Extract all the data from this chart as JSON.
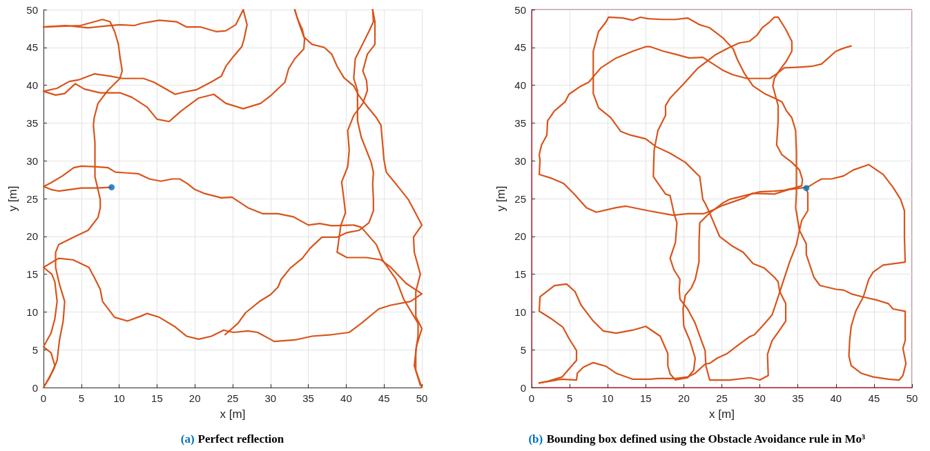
{
  "chart_data": [
    {
      "type": "line",
      "title": "(a) Perfect reflection",
      "xlabel": "x [m]",
      "ylabel": "y [m]",
      "xlim": [
        0,
        50
      ],
      "ylim": [
        0,
        50
      ],
      "xticks": [
        0,
        5,
        10,
        15,
        20,
        25,
        30,
        35,
        40,
        45,
        50
      ],
      "yticks": [
        0,
        5,
        10,
        15,
        20,
        25,
        30,
        35,
        40,
        45,
        50
      ],
      "grid": true,
      "series": [
        {
          "color": "#d95319",
          "marker": "none",
          "x": [
            9,
            7,
            5,
            3.5,
            2,
            1,
            0,
            1,
            2.5,
            4,
            5,
            7,
            8.5,
            9.5,
            11,
            12.5,
            14,
            15.5,
            17,
            18,
            19,
            20,
            21.2,
            23.5,
            24.9,
            27,
            29,
            31,
            33,
            35,
            36.5,
            38.1,
            41,
            42,
            44,
            44.8,
            46.6,
            47.6,
            49.5,
            49.5,
            49.2,
            49.2,
            50
          ],
          "values": [
            26.5,
            26.4,
            26.4,
            26.2,
            26,
            26.2,
            26.6,
            27.1,
            28,
            29.1,
            29.3,
            29.2,
            29.1,
            28.5,
            28.4,
            28.3,
            27.6,
            27.3,
            27.6,
            27.6,
            27,
            26.2,
            25.7,
            25.1,
            25.2,
            23.8,
            23,
            23,
            22.6,
            21.5,
            21.7,
            21.4,
            21.5,
            21.2,
            18.9,
            16.9,
            14.3,
            11.7,
            8.5,
            6.8,
            4.9,
            2.3,
            0
          ]
        },
        {
          "color": "#d95319",
          "marker": "none",
          "x": [
            0,
            4.9,
            7.8,
            8.8,
            9.4,
            9.9,
            10.1,
            10.4,
            10.1,
            8.5,
            7.2,
            6.7,
            6.6,
            6.8,
            6.8,
            7.2,
            7.5,
            7.5,
            7.2,
            5.9,
            4.2,
            2,
            1.6,
            1.6,
            2.1,
            2.8,
            2.6,
            2.1,
            1.8,
            1.3,
            0
          ],
          "values": [
            47.7,
            47.9,
            48.7,
            48.4,
            47.1,
            45.4,
            43.8,
            41.9,
            40.9,
            39.3,
            37.6,
            35.7,
            34.7,
            32.4,
            27.9,
            26.2,
            24.9,
            23.8,
            22.5,
            20.8,
            20,
            18.9,
            17.9,
            15.9,
            13.7,
            11.4,
            8.8,
            6.2,
            3.6,
            2.3,
            0
          ]
        },
        {
          "color": "#d95319",
          "marker": "none",
          "x": [
            0,
            2.9,
            5.9,
            7.8,
            10.1,
            12,
            13,
            15.3,
            17.6,
            18.9,
            20.8,
            22.8,
            24.1,
            25.4,
            26.4,
            26.9,
            26.5,
            26.2,
            25.1,
            24.1,
            23.5,
            22.1,
            20.2,
            18.6,
            17.4,
            16,
            14.6,
            13.2,
            10.4,
            8.8,
            6.7,
            4.6,
            3.4,
            1.8,
            0,
            1.6,
            2.8,
            4.2,
            5.4,
            7.5,
            10.1,
            11.7,
            13.7,
            15,
            16.6,
            18.2,
            20.5,
            22.5,
            24.1,
            26.4,
            28.7,
            30,
            31.9,
            32.4,
            33.2,
            34.4,
            34.5,
            34.2,
            33.6,
            33.2
          ],
          "values": [
            47.7,
            47.9,
            47.6,
            47.8,
            48,
            47.9,
            48.2,
            48.6,
            48.4,
            47.7,
            47.7,
            47.1,
            47.2,
            48,
            50,
            48,
            46.1,
            45.1,
            43.8,
            42.5,
            41.2,
            40.4,
            39.4,
            39.1,
            38.8,
            39.6,
            40.4,
            40.9,
            40.9,
            41.2,
            41.5,
            40.7,
            40.5,
            39.6,
            39.2,
            38.7,
            38.9,
            40.2,
            39.5,
            39,
            39,
            38.4,
            37.1,
            35.5,
            35.2,
            36.6,
            38.3,
            38.8,
            37.6,
            36.9,
            37.6,
            38.6,
            40.4,
            42.2,
            43.5,
            44.8,
            46.1,
            47.4,
            48.7,
            50
          ]
        },
        {
          "color": "#d95319",
          "marker": "none",
          "x": [
            33.2,
            33.7,
            34.4,
            35.5,
            37.1,
            38.1,
            38.8,
            39.7,
            41,
            41.7,
            42.7,
            44,
            44.6,
            45,
            45.3,
            46.6,
            48.2,
            50,
            48.9,
            49,
            49.8,
            49.2,
            49.2,
            50,
            49.3,
            49,
            49.8
          ],
          "values": [
            50,
            48.4,
            46.4,
            45.4,
            45,
            44.1,
            42.5,
            41,
            39.9,
            38.6,
            37.3,
            35.7,
            34.7,
            30.1,
            28.5,
            26.9,
            24.9,
            21.5,
            19.9,
            17.9,
            15,
            12.7,
            9.4,
            7.8,
            5.5,
            2.9,
            0.3
          ]
        },
        {
          "color": "#d95319",
          "marker": "none",
          "x": [
            43.5,
            43.6,
            43,
            42,
            41.2,
            41,
            41.5,
            41.5,
            42,
            43.3,
            43.6,
            43.5,
            43.6,
            43.6,
            43.6,
            43,
            41.7,
            40.1,
            38.8,
            36.8,
            35.2,
            34.2,
            32.6,
            31.4,
            31,
            30,
            28.7,
            26.7,
            25.7,
            24
          ],
          "values": [
            50,
            48.4,
            47.1,
            45.1,
            43.5,
            40.9,
            39.3,
            35.3,
            33.1,
            29.8,
            28.5,
            26.9,
            24.9,
            25,
            23.4,
            21.8,
            20.8,
            20.5,
            19.9,
            19.9,
            18.4,
            17.1,
            15.8,
            14.3,
            13.3,
            12.3,
            11.5,
            9.9,
            8.5,
            7
          ]
        },
        {
          "color": "#d95319",
          "marker": "none",
          "x": [
            43.5,
            43.8,
            43.8,
            42.8,
            42.2,
            42.7,
            42.8,
            42.2,
            41,
            40.2,
            40.4,
            40.2,
            39.4,
            39.7,
            39.9,
            39.3,
            38.8,
            40.1,
            42.7,
            44.6,
            45.9,
            47.9,
            50,
            48.5,
            45.9,
            44.3,
            42,
            40.4,
            38.1,
            35.5,
            33.2,
            30.5,
            28.3,
            27,
            25.1,
            23.8,
            22.2,
            20.5,
            18.9,
            17.3,
            15.3,
            13.7,
            13,
            11.1,
            9.4,
            7.8,
            7.5,
            6.7,
            6,
            3.9,
            2,
            0,
            1.1,
            1.5,
            1.8,
            1.5,
            1,
            0,
            1,
            1.5,
            0.8,
            0
          ],
          "values": [
            50,
            48.4,
            45.4,
            44.1,
            41.9,
            40.6,
            39.3,
            37.6,
            36,
            34,
            31.4,
            29.2,
            27.2,
            24.9,
            23.1,
            21.5,
            17.9,
            17.2,
            17.2,
            16.9,
            15.9,
            13.8,
            12.4,
            11.4,
            10.9,
            10.4,
            8.5,
            7.3,
            7,
            6.8,
            6.3,
            6.1,
            7.3,
            7.5,
            7.3,
            7.6,
            6.8,
            6.4,
            6.8,
            8.1,
            9.3,
            9.8,
            9.5,
            8.8,
            9.3,
            11.4,
            13,
            14.6,
            15.9,
            16.9,
            17.1,
            15.9,
            15,
            14,
            11.4,
            9.1,
            7.2,
            5.4,
            4.6,
            2.9,
            1.3,
            0
          ]
        },
        {
          "type": "scatter",
          "color": "#0072bd",
          "marker": "circle",
          "x": [
            9
          ],
          "values": [
            26.5
          ]
        }
      ]
    },
    {
      "type": "line",
      "title": "(b) Bounding box defined using the Obstacle Avoidance rule in Mo³",
      "xlabel": "x [m]",
      "ylabel": "y [m]",
      "xlim": [
        0,
        50
      ],
      "ylim": [
        0,
        50
      ],
      "xticks": [
        0,
        5,
        10,
        15,
        20,
        25,
        30,
        35,
        40,
        45,
        50
      ],
      "yticks": [
        0,
        5,
        10,
        15,
        20,
        25,
        30,
        35,
        40,
        45,
        50
      ],
      "grid": true,
      "series": [
        {
          "color": "#d95319",
          "marker": "none",
          "x": [
            36.1,
            37.4,
            38.1,
            39.4,
            41,
            42.3,
            44.3,
            46.2,
            47.5,
            48.5,
            49,
            49,
            49.1,
            46.2,
            44.9,
            44.3,
            43.6,
            42.6,
            42,
            41.8,
            41.7,
            42,
            43.3,
            44.9,
            46.9,
            48.3,
            48.8,
            49.2,
            48.8,
            49.1,
            49.1,
            47.5,
            46.9,
            45.3,
            43.5,
            42,
            41,
            40,
            37.9,
            37.1,
            36.1,
            36.1,
            35.2,
            34.7,
            34.8,
            34.8,
            34.7,
            34.2,
            33.5,
            32.9,
            31.9,
            30.6,
            29.1,
            28,
            27,
            26.5,
            25.1,
            23.4,
            22.1,
            20.5,
            18.9,
            17.3,
            15.3,
            14.3,
            13.3,
            12,
            10.1,
            9.8,
            8.8,
            8.1,
            8.1,
            8.1,
            8.8,
            10.4,
            11.7,
            13,
            15,
            16.3,
            18.2,
            20.2,
            22.1,
            22.5,
            22.8,
            23.4,
            24.7,
            26.4,
            27.8,
            29.1,
            30.6,
            31.9,
            32.4,
            32.6,
            33.4,
            33.4,
            32.6,
            31.6,
            31,
            31.1,
            30,
            28.7,
            26,
            23.4,
            22.9,
            22.8,
            22.1,
            21.5,
            20.5,
            19.5,
            19.4,
            19.5,
            18.7,
            18.2,
            18.9,
            19.1,
            18.7,
            18.2,
            17.6,
            16,
            16.1,
            16.6,
            17.6,
            17.6,
            18.2,
            19.9,
            21.8,
            24.1,
            26,
            27.3,
            28.6,
            29.6,
            30.3,
            31.3,
            31.9,
            32.4,
            33.4,
            34.2,
            34.2,
            33.5,
            32.6,
            31.9,
            31.7,
            32.4,
            32.4,
            32.2,
            32.9,
            34.2,
            35.2,
            35.6,
            35.5,
            34.5,
            33.2,
            31.9,
            30,
            28,
            26,
            25.1,
            23.4,
            22.1,
            22,
            22,
            21.5,
            21,
            20.2,
            19.9,
            20,
            20.8,
            21.5,
            21.3,
            20.5,
            18.9,
            18.2,
            17.9,
            17.9,
            16.9,
            15,
            13.3,
            11.1,
            9.4,
            8.1,
            6.5,
            5.7,
            4.6,
            3,
            1.1,
            1,
            2.6,
            4.1,
            4.9,
            5.9,
            5.9,
            4,
            2,
            1
          ],
          "values": [
            26.4,
            27.2,
            27.6,
            27.6,
            28,
            28.8,
            29.5,
            28.2,
            26.5,
            24.9,
            23.4,
            19.9,
            16.6,
            16.2,
            15.3,
            14.3,
            12,
            10.1,
            8.1,
            6.2,
            4.2,
            2.9,
            1.9,
            1.4,
            1.1,
            1,
            1.6,
            3.2,
            5.2,
            6.2,
            10.1,
            10.4,
            11.1,
            11.6,
            12,
            12.4,
            12.9,
            13,
            13.5,
            14.6,
            17.6,
            19,
            20.8,
            23.8,
            25.7,
            31.1,
            34,
            35.7,
            36.6,
            37.8,
            38.3,
            38.9,
            39.9,
            41.5,
            43.5,
            44.8,
            46.3,
            47.6,
            48,
            48.9,
            48.7,
            48.7,
            48.8,
            49,
            48.6,
            48.9,
            49,
            48.4,
            47.1,
            44.5,
            41.2,
            38.9,
            37,
            35.7,
            33.9,
            33.4,
            32.9,
            31.9,
            31,
            29.8,
            27.9,
            24.9,
            24.4,
            23.1,
            20,
            18.7,
            17.9,
            16.4,
            15.8,
            14.6,
            14,
            12.7,
            11.1,
            8.8,
            7.6,
            6.2,
            4.4,
            1.6,
            1,
            1.3,
            1,
            1,
            2.9,
            4.9,
            6.8,
            8.5,
            10.4,
            11.7,
            13,
            14.3,
            15.6,
            17.1,
            19.2,
            21.8,
            23.1,
            25.4,
            25.6,
            27.9,
            31.4,
            34,
            36,
            37.3,
            38.3,
            40.1,
            42.2,
            44,
            45,
            45.6,
            45.8,
            46.6,
            47.6,
            48.4,
            49,
            49,
            47.4,
            45.8,
            44.5,
            43.2,
            42,
            40.9,
            39.9,
            37.3,
            35.3,
            32.1,
            30.8,
            29.8,
            28.8,
            27.5,
            26.7,
            26.4,
            26.1,
            26,
            25.9,
            25.4,
            24.9,
            24.4,
            23.1,
            21.8,
            19.2,
            16.6,
            14.3,
            13.2,
            12.2,
            10.4,
            8.1,
            6.2,
            3.9,
            2.3,
            1.3,
            1,
            1.8,
            2.9,
            4.5,
            6.8,
            8.1,
            7.6,
            7.2,
            7.5,
            8.8,
            10.9,
            12.7,
            13.7,
            13.5,
            12,
            10.1,
            9.1,
            8,
            6.5,
            4.9,
            3.6,
            1.4,
            0.8,
            0.6
          ]
        },
        {
          "color": "#d95319",
          "marker": "none",
          "x": [
            1,
            3.9,
            5.9,
            6,
            6.8,
            8.1,
            9.8,
            11.1,
            13.3,
            15.6,
            16.6,
            18.9,
            20.5,
            21.5,
            22.8,
            23.4,
            24.4,
            25.7,
            27,
            28.6,
            29.3,
            30.3,
            31.6,
            32.2,
            33.9,
            34.8,
            35.2,
            35.5,
            36.3,
            36.3,
            36.1
          ],
          "values": [
            0.6,
            1.1,
            1,
            1.9,
            2.7,
            3.3,
            2.8,
            1.9,
            1.1,
            1.1,
            1.2,
            1.2,
            1.4,
            1.9,
            3.1,
            3.2,
            3.9,
            4.5,
            5.5,
            6.7,
            7,
            8.1,
            9.6,
            11.4,
            16.6,
            18.9,
            20.8,
            22.1,
            23.4,
            25.7,
            26.4
          ]
        },
        {
          "color": "#d95319",
          "marker": "none",
          "x": [
            42,
            41,
            40,
            38.1,
            36.8,
            35.2,
            33.2,
            32.2,
            31.3,
            30,
            28.3,
            26.4,
            25.1,
            22.5,
            20.7,
            18.9,
            17.3,
            15.6,
            15,
            13.3,
            11.1,
            9.1,
            7.5,
            6.5,
            4.9,
            4.4,
            3,
            2.1,
            2,
            1.3,
            1,
            1.1,
            1,
            2.6,
            4.2,
            5.5,
            7.2,
            8.5,
            11.1,
            12.4,
            15.3,
            18.6,
            20.5,
            22.6,
            24.1,
            25.1,
            28,
            29,
            31.9,
            33.8,
            36.1
          ],
          "values": [
            45.2,
            44.9,
            44.5,
            42.8,
            42.5,
            42.4,
            42.3,
            41.5,
            40.9,
            40.9,
            40.9,
            41.4,
            42,
            43.7,
            43.6,
            44.1,
            44.5,
            45.1,
            45.1,
            44.5,
            43.6,
            42.3,
            40.4,
            39.9,
            38.8,
            37.8,
            36.6,
            35.3,
            33.4,
            32.1,
            30.8,
            30.1,
            28.2,
            27.7,
            27,
            25.7,
            23.8,
            23.2,
            23.8,
            24,
            23.4,
            22.8,
            23,
            23,
            23.6,
            24.1,
            25.1,
            25.7,
            25.6,
            26.2,
            26.5
          ]
        },
        {
          "type": "scatter",
          "color": "#0072bd",
          "marker": "circle",
          "x": [
            36.1
          ],
          "values": [
            26.4
          ]
        }
      ]
    }
  ]
}
